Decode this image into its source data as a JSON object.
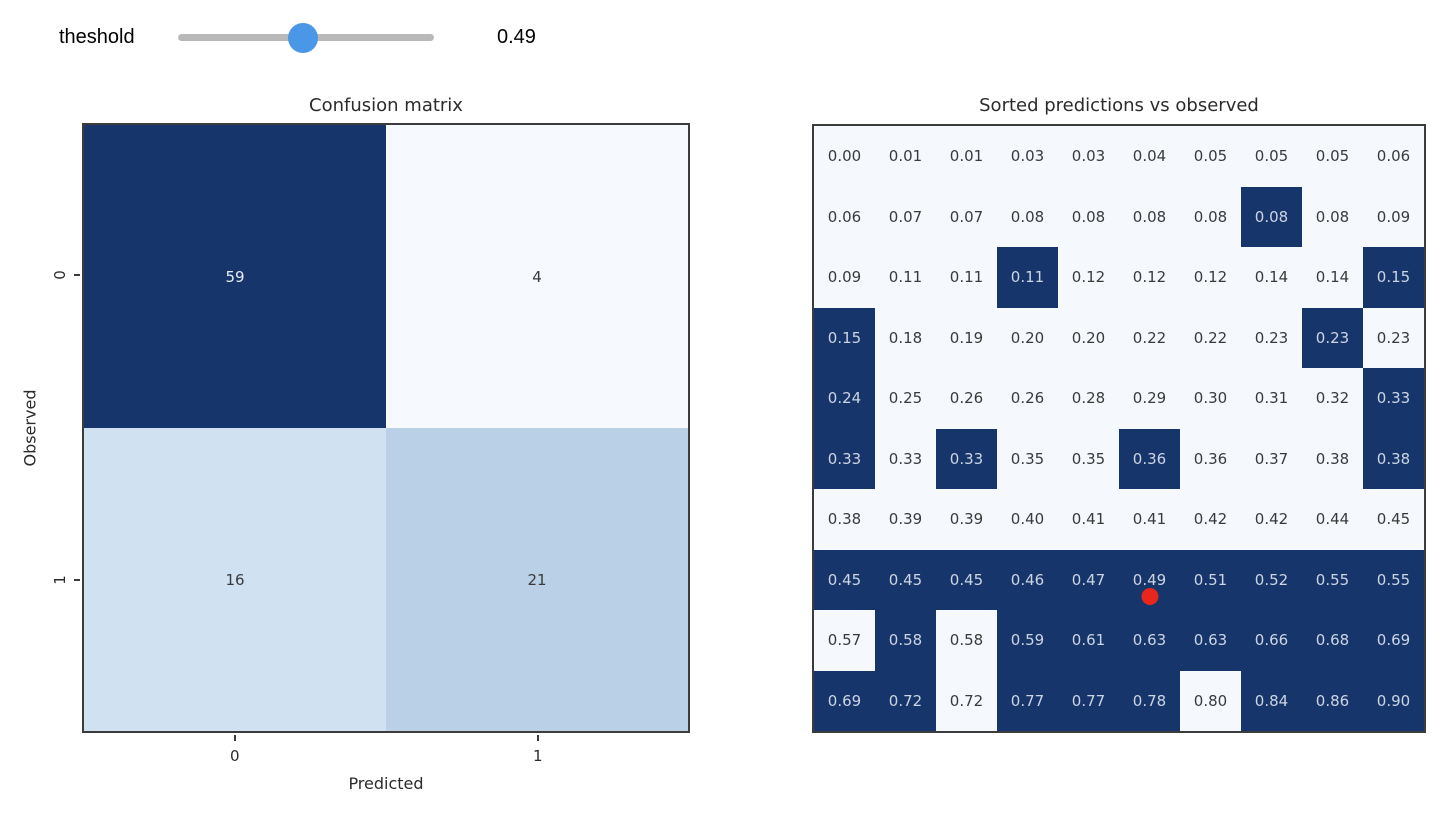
{
  "widget": {
    "label": "theshold",
    "value": "0.49",
    "fraction": 0.49
  },
  "colors": {
    "track": "#b9b9b9",
    "handle": "#4a97e8",
    "dark_cell": "#16356b",
    "light_cell": "#f5f9fe",
    "dark_cell_text": "#cdd5e3",
    "light_cell_text": "#3a3a3a",
    "marker": "#e8261b"
  },
  "chart_data": [
    {
      "type": "heatmap",
      "title": "Confusion matrix",
      "xlabel": "Predicted",
      "ylabel": "Observed",
      "x_ticks": [
        "0",
        "1"
      ],
      "y_ticks": [
        "0",
        "1"
      ],
      "values": [
        [
          59,
          4
        ],
        [
          16,
          21
        ]
      ],
      "cells": [
        [
          {
            "value": "59",
            "bg": "#16356b",
            "text_color": "#e9edf5"
          },
          {
            "value": "4",
            "bg": "#f6fafe",
            "text_color": "#3a3a3a"
          }
        ],
        [
          {
            "value": "16",
            "bg": "#d0e1f1",
            "text_color": "#3a3a3a"
          },
          {
            "value": "21",
            "bg": "#b9d0e7",
            "text_color": "#3a3a3a"
          }
        ]
      ]
    },
    {
      "type": "heatmap",
      "title": "Sorted predictions vs observed",
      "values": [
        [
          "0.00",
          "0.01",
          "0.01",
          "0.03",
          "0.03",
          "0.04",
          "0.05",
          "0.05",
          "0.05",
          "0.06"
        ],
        [
          "0.06",
          "0.07",
          "0.07",
          "0.08",
          "0.08",
          "0.08",
          "0.08",
          "0.08",
          "0.08",
          "0.09"
        ],
        [
          "0.09",
          "0.11",
          "0.11",
          "0.11",
          "0.12",
          "0.12",
          "0.12",
          "0.14",
          "0.14",
          "0.15"
        ],
        [
          "0.15",
          "0.18",
          "0.19",
          "0.20",
          "0.20",
          "0.22",
          "0.22",
          "0.23",
          "0.23",
          "0.23"
        ],
        [
          "0.24",
          "0.25",
          "0.26",
          "0.26",
          "0.28",
          "0.29",
          "0.30",
          "0.31",
          "0.32",
          "0.33"
        ],
        [
          "0.33",
          "0.33",
          "0.33",
          "0.35",
          "0.35",
          "0.36",
          "0.36",
          "0.37",
          "0.38",
          "0.38"
        ],
        [
          "0.38",
          "0.39",
          "0.39",
          "0.40",
          "0.41",
          "0.41",
          "0.42",
          "0.42",
          "0.44",
          "0.45"
        ],
        [
          "0.45",
          "0.45",
          "0.45",
          "0.46",
          "0.47",
          "0.49",
          "0.51",
          "0.52",
          "0.55",
          "0.55"
        ],
        [
          "0.57",
          "0.58",
          "0.58",
          "0.59",
          "0.61",
          "0.63",
          "0.63",
          "0.66",
          "0.68",
          "0.69"
        ],
        [
          "0.69",
          "0.72",
          "0.72",
          "0.77",
          "0.77",
          "0.78",
          "0.80",
          "0.84",
          "0.86",
          "0.90"
        ]
      ],
      "observed": [
        [
          0,
          0,
          0,
          0,
          0,
          0,
          0,
          0,
          0,
          0
        ],
        [
          0,
          0,
          0,
          0,
          0,
          0,
          0,
          1,
          0,
          0
        ],
        [
          0,
          0,
          0,
          1,
          0,
          0,
          0,
          0,
          0,
          1
        ],
        [
          1,
          0,
          0,
          0,
          0,
          0,
          0,
          0,
          1,
          0
        ],
        [
          1,
          0,
          0,
          0,
          0,
          0,
          0,
          0,
          0,
          1
        ],
        [
          1,
          0,
          1,
          0,
          0,
          1,
          0,
          0,
          0,
          1
        ],
        [
          0,
          0,
          0,
          0,
          0,
          0,
          0,
          0,
          0,
          0
        ],
        [
          1,
          1,
          1,
          1,
          1,
          1,
          1,
          1,
          1,
          1
        ],
        [
          0,
          1,
          0,
          1,
          1,
          1,
          1,
          1,
          1,
          1
        ],
        [
          1,
          1,
          0,
          1,
          1,
          1,
          0,
          1,
          1,
          1
        ]
      ],
      "marker": {
        "row": 7,
        "col": 5,
        "value": "0.49"
      }
    }
  ]
}
